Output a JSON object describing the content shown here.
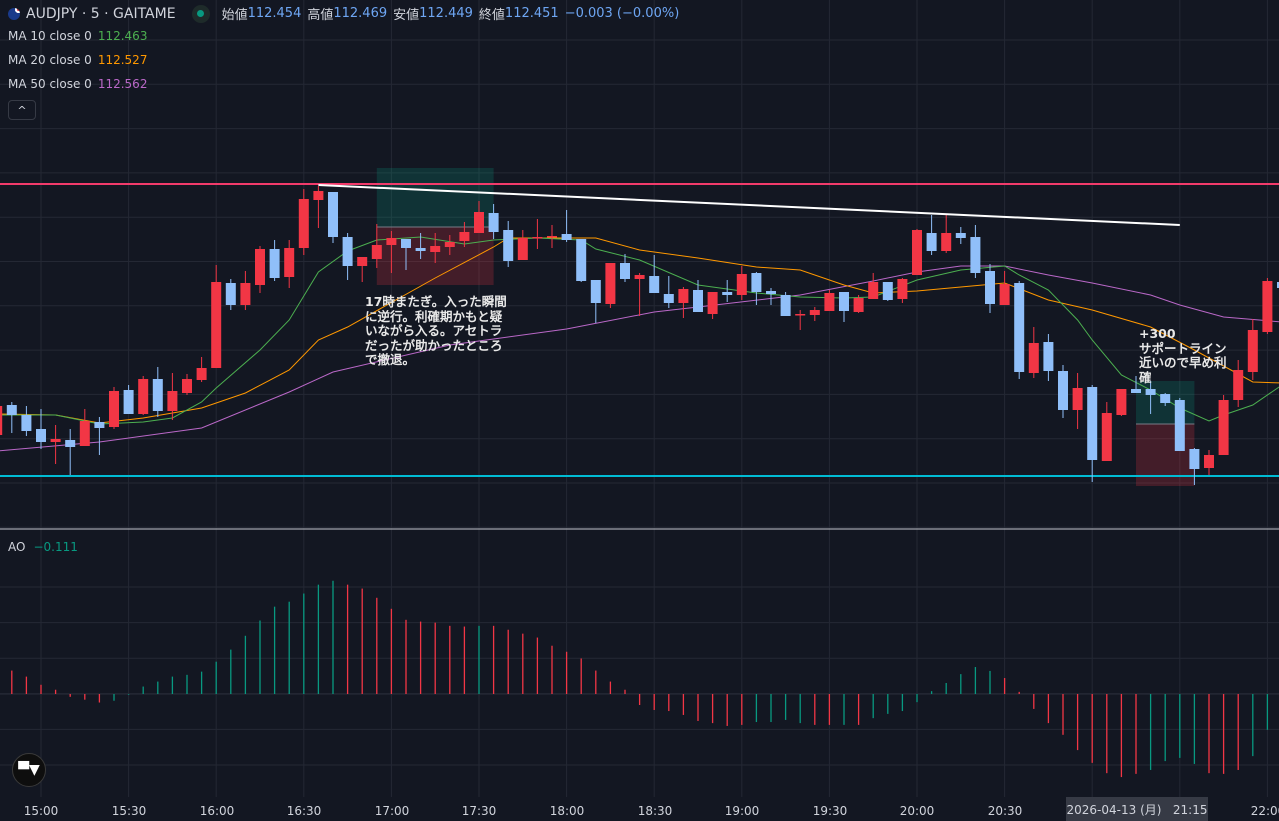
{
  "header": {
    "symbol": "AUDJPY · 5 · GAITAME",
    "open_label": "始値",
    "open": "112.454",
    "high_label": "高値",
    "high": "112.469",
    "low_label": "安値",
    "low": "112.449",
    "close_label": "終値",
    "close": "112.451",
    "change": "−0.003 (−0.00%)"
  },
  "indicators": [
    {
      "label": "MA 10 close 0",
      "value": "112.463",
      "color": "#4CAF50"
    },
    {
      "label": "MA 20 close 0",
      "value": "112.527",
      "color": "#FF9800"
    },
    {
      "label": "MA 50 close 0",
      "value": "112.562",
      "color": "#BA68C8"
    }
  ],
  "collapse_icon": "chevron-up-icon",
  "collapse_glyph": "^",
  "annotations": [
    {
      "text": "17時またぎ。入った瞬間\nに逆行。利確期かもと疑\nいながら入る。アセトラ\nだったが助かったところ\nで撤退。"
    },
    {
      "text": "+300\nサポートライン\n近いので早め利\n確"
    }
  ],
  "ao_legend": {
    "label": "AO",
    "value": "−0.111"
  },
  "time_axis": {
    "labels": [
      "15:00",
      "15:30",
      "16:00",
      "16:30",
      "17:00",
      "17:30",
      "18:00",
      "18:30",
      "19:00",
      "19:30",
      "20:00",
      "20:30",
      "22:00"
    ],
    "crosshair_label": "2026-04-13 (月)   21:15"
  },
  "logo_text": "TV",
  "colors": {
    "up": "#F23645",
    "down": "#90BFF9",
    "ao_up": "#089981",
    "ao_down": "#F23645",
    "resistance": "#F23B6B",
    "support": "#00BCD4",
    "trendline": "#FFFFFF",
    "background": "#131722"
  },
  "chart_data": {
    "type": "candlestick",
    "interval_minutes": 5,
    "first_candle_time": "14:45",
    "candles_ohlc": [
      [
        112.471,
        112.503,
        112.468,
        112.5
      ],
      [
        112.501,
        112.504,
        112.473,
        112.491
      ],
      [
        112.491,
        112.5,
        112.47,
        112.475
      ],
      [
        112.477,
        112.497,
        112.457,
        112.464
      ],
      [
        112.464,
        112.481,
        112.442,
        112.467
      ],
      [
        112.466,
        112.477,
        112.431,
        112.459
      ],
      [
        112.46,
        112.497,
        112.46,
        112.485
      ],
      [
        112.484,
        112.489,
        112.451,
        112.478
      ],
      [
        112.479,
        112.519,
        112.477,
        112.515
      ],
      [
        112.516,
        112.521,
        112.492,
        112.492
      ],
      [
        112.492,
        112.53,
        112.491,
        112.527
      ],
      [
        112.527,
        112.539,
        112.489,
        112.495
      ],
      [
        112.495,
        112.533,
        112.486,
        112.515
      ],
      [
        112.513,
        112.532,
        112.511,
        112.527
      ],
      [
        112.526,
        112.549,
        112.524,
        112.538
      ],
      [
        112.538,
        112.641,
        112.538,
        112.624
      ],
      [
        112.623,
        112.627,
        112.596,
        112.601
      ],
      [
        112.601,
        112.635,
        112.596,
        112.623
      ],
      [
        112.621,
        112.66,
        112.613,
        112.657
      ],
      [
        112.657,
        112.666,
        112.625,
        112.628
      ],
      [
        112.629,
        112.666,
        112.618,
        112.658
      ],
      [
        112.658,
        112.717,
        112.651,
        112.707
      ],
      [
        112.706,
        112.72,
        112.678,
        112.715
      ],
      [
        112.714,
        112.714,
        112.663,
        112.669
      ],
      [
        112.669,
        112.673,
        112.626,
        112.64
      ],
      [
        112.64,
        112.649,
        112.624,
        112.649
      ],
      [
        112.647,
        112.682,
        112.638,
        112.661
      ],
      [
        112.661,
        112.675,
        112.633,
        112.668
      ],
      [
        112.667,
        112.667,
        112.636,
        112.658
      ],
      [
        112.658,
        112.673,
        112.647,
        112.655
      ],
      [
        112.654,
        112.673,
        112.643,
        112.66
      ],
      [
        112.659,
        112.671,
        112.651,
        112.664
      ],
      [
        112.665,
        112.684,
        112.659,
        112.674
      ],
      [
        112.673,
        112.705,
        112.673,
        112.694
      ],
      [
        112.693,
        112.702,
        112.667,
        112.674
      ],
      [
        112.676,
        112.685,
        112.639,
        112.645
      ],
      [
        112.646,
        112.676,
        112.646,
        112.668
      ],
      [
        112.668,
        112.687,
        112.657,
        112.669
      ],
      [
        112.669,
        112.681,
        112.658,
        112.67
      ],
      [
        112.672,
        112.696,
        112.664,
        112.666
      ],
      [
        112.667,
        112.667,
        112.624,
        112.625
      ],
      [
        112.626,
        112.626,
        112.583,
        112.603
      ],
      [
        112.602,
        112.643,
        112.598,
        112.643
      ],
      [
        112.643,
        112.652,
        112.624,
        112.627
      ],
      [
        112.627,
        112.633,
        112.59,
        112.631
      ],
      [
        112.63,
        112.651,
        112.613,
        112.613
      ],
      [
        112.612,
        112.63,
        112.598,
        112.603
      ],
      [
        112.603,
        112.619,
        112.588,
        112.617
      ],
      [
        112.616,
        112.626,
        112.594,
        112.594
      ],
      [
        112.592,
        112.614,
        112.587,
        112.614
      ],
      [
        112.614,
        112.626,
        112.604,
        112.611
      ],
      [
        112.611,
        112.64,
        112.606,
        112.632
      ],
      [
        112.633,
        112.634,
        112.601,
        112.614
      ],
      [
        112.615,
        112.618,
        112.601,
        112.612
      ],
      [
        112.611,
        112.614,
        112.59,
        112.59
      ],
      [
        112.591,
        112.596,
        112.576,
        112.592
      ],
      [
        112.591,
        112.599,
        112.585,
        112.596
      ],
      [
        112.595,
        112.616,
        112.595,
        112.613
      ],
      [
        112.614,
        112.614,
        112.584,
        112.595
      ],
      [
        112.594,
        112.611,
        112.593,
        112.608
      ],
      [
        112.607,
        112.633,
        112.607,
        112.624
      ],
      [
        112.624,
        112.624,
        112.605,
        112.606
      ],
      [
        112.607,
        112.628,
        112.603,
        112.627
      ],
      [
        112.631,
        112.677,
        112.631,
        112.676
      ],
      [
        112.673,
        112.691,
        112.651,
        112.655
      ],
      [
        112.655,
        112.691,
        112.653,
        112.673
      ],
      [
        112.673,
        112.679,
        112.662,
        112.668
      ],
      [
        112.669,
        112.681,
        112.628,
        112.633
      ],
      [
        112.635,
        112.642,
        112.593,
        112.602
      ],
      [
        112.601,
        112.635,
        112.601,
        112.622
      ],
      [
        112.623,
        112.625,
        112.527,
        112.534
      ],
      [
        112.533,
        112.579,
        112.528,
        112.563
      ],
      [
        112.564,
        112.572,
        112.525,
        112.535
      ],
      [
        112.535,
        112.541,
        112.488,
        112.496
      ],
      [
        112.496,
        112.533,
        112.477,
        112.518
      ],
      [
        112.519,
        112.521,
        112.424,
        112.446
      ],
      [
        112.445,
        112.504,
        112.445,
        112.493
      ],
      [
        112.491,
        112.517,
        112.49,
        112.517
      ],
      [
        112.517,
        112.53,
        112.513,
        112.513
      ],
      [
        112.517,
        112.525,
        112.492,
        112.511
      ],
      [
        112.512,
        112.513,
        112.5,
        112.503
      ],
      [
        112.506,
        112.508,
        112.455,
        112.455
      ],
      [
        112.457,
        112.458,
        112.421,
        112.437
      ],
      [
        112.438,
        112.456,
        112.431,
        112.451
      ],
      [
        112.451,
        112.511,
        112.451,
        112.506
      ],
      [
        112.506,
        112.546,
        112.499,
        112.536
      ],
      [
        112.534,
        112.587,
        112.526,
        112.576
      ],
      [
        112.574,
        112.628,
        112.572,
        112.625
      ],
      [
        112.624,
        112.626,
        112.616,
        112.618
      ]
    ],
    "ma10": [
      [
        0,
        112.491
      ],
      [
        4,
        112.491
      ],
      [
        7,
        112.482
      ],
      [
        10,
        112.484
      ],
      [
        12,
        112.488
      ],
      [
        14,
        112.504
      ],
      [
        15,
        112.518
      ],
      [
        18,
        112.556
      ],
      [
        20,
        112.586
      ],
      [
        22,
        112.634
      ],
      [
        24,
        112.655
      ],
      [
        26,
        112.666
      ],
      [
        29,
        112.669
      ],
      [
        32,
        112.662
      ],
      [
        34,
        112.666
      ],
      [
        37,
        112.668
      ],
      [
        40,
        112.666
      ],
      [
        41,
        112.657
      ],
      [
        44,
        112.646
      ],
      [
        48,
        112.621
      ],
      [
        50,
        112.617
      ],
      [
        52,
        112.613
      ],
      [
        55,
        112.609
      ],
      [
        58,
        112.608
      ],
      [
        60,
        112.609
      ],
      [
        63,
        112.626
      ],
      [
        66,
        112.636
      ],
      [
        69,
        112.64
      ],
      [
        70,
        112.631
      ],
      [
        72,
        112.616
      ],
      [
        74,
        112.586
      ],
      [
        75,
        112.566
      ],
      [
        77,
        112.531
      ],
      [
        79,
        112.516
      ],
      [
        81,
        112.498
      ],
      [
        83,
        112.485
      ],
      [
        84,
        112.491
      ],
      [
        86,
        112.501
      ],
      [
        88,
        112.521
      ]
    ],
    "ma20": [
      [
        0,
        112.492
      ],
      [
        4,
        112.491
      ],
      [
        7,
        112.483
      ],
      [
        10,
        112.488
      ],
      [
        14,
        112.498
      ],
      [
        17,
        112.513
      ],
      [
        20,
        112.536
      ],
      [
        22,
        112.566
      ],
      [
        24,
        112.579
      ],
      [
        30,
        112.628
      ],
      [
        34,
        112.659
      ],
      [
        35,
        112.668
      ],
      [
        41,
        112.668
      ],
      [
        44,
        112.656
      ],
      [
        48,
        112.648
      ],
      [
        52,
        112.639
      ],
      [
        55,
        112.636
      ],
      [
        58,
        112.621
      ],
      [
        60,
        112.613
      ],
      [
        63,
        112.615
      ],
      [
        66,
        112.619
      ],
      [
        69,
        112.623
      ],
      [
        72,
        112.606
      ],
      [
        75,
        112.596
      ],
      [
        79,
        112.579
      ],
      [
        82,
        112.556
      ],
      [
        86,
        112.524
      ],
      [
        88,
        112.523
      ]
    ],
    "ma50": [
      [
        0,
        112.455
      ],
      [
        7,
        112.464
      ],
      [
        14,
        112.478
      ],
      [
        20,
        112.514
      ],
      [
        23,
        112.534
      ],
      [
        31,
        112.561
      ],
      [
        39,
        112.577
      ],
      [
        45,
        112.594
      ],
      [
        48,
        112.599
      ],
      [
        55,
        112.611
      ],
      [
        60,
        112.625
      ],
      [
        63,
        112.634
      ],
      [
        66,
        112.64
      ],
      [
        69,
        112.64
      ],
      [
        72,
        112.631
      ],
      [
        75,
        112.623
      ],
      [
        79,
        112.611
      ],
      [
        81,
        112.601
      ],
      [
        84,
        112.589
      ],
      [
        88,
        112.584
      ]
    ],
    "hlines": [
      {
        "name": "resistance",
        "price": 112.722
      },
      {
        "name": "support",
        "price": 112.43
      }
    ],
    "trendline": [
      [
        22,
        112.721
      ],
      [
        81,
        112.681
      ]
    ],
    "positions": [
      {
        "from": 26,
        "to": 34,
        "target": 112.738,
        "entry": 112.679,
        "stop": 112.621
      },
      {
        "from": 78,
        "to": 82,
        "target": 112.525,
        "entry": 112.482,
        "stop": 112.42
      }
    ],
    "ao": {
      "start_index": 1,
      "values": [
        0.066,
        0.049,
        0.026,
        0.012,
        -0.008,
        -0.016,
        -0.024,
        -0.019,
        -0.002,
        0.021,
        0.035,
        0.049,
        0.054,
        0.063,
        0.091,
        0.125,
        0.164,
        0.207,
        0.246,
        0.26,
        0.283,
        0.308,
        0.319,
        0.308,
        0.297,
        0.271,
        0.24,
        0.209,
        0.204,
        0.201,
        0.192,
        0.19,
        0.192,
        0.192,
        0.181,
        0.17,
        0.159,
        0.136,
        0.119,
        0.1,
        0.066,
        0.035,
        0.012,
        -0.031,
        -0.045,
        -0.048,
        -0.059,
        -0.076,
        -0.082,
        -0.09,
        -0.087,
        -0.079,
        -0.079,
        -0.073,
        -0.082,
        -0.087,
        -0.087,
        -0.087,
        -0.087,
        -0.068,
        -0.056,
        -0.048,
        -0.023,
        0.008,
        0.031,
        0.056,
        0.076,
        0.065,
        0.045,
        0.006,
        -0.042,
        -0.082,
        -0.115,
        -0.158,
        -0.194,
        -0.223,
        -0.234,
        -0.225,
        -0.214,
        -0.189,
        -0.18,
        -0.197,
        -0.223,
        -0.225,
        -0.214,
        -0.175,
        -0.101
      ],
      "colors": "rrrrrrrggggggggggggggggrrrrrrrrrgrrrrrrrrrrrrrrrrrrggggrrgrgggggggggrrrrrrrrrrggggrrrggg"
    }
  }
}
